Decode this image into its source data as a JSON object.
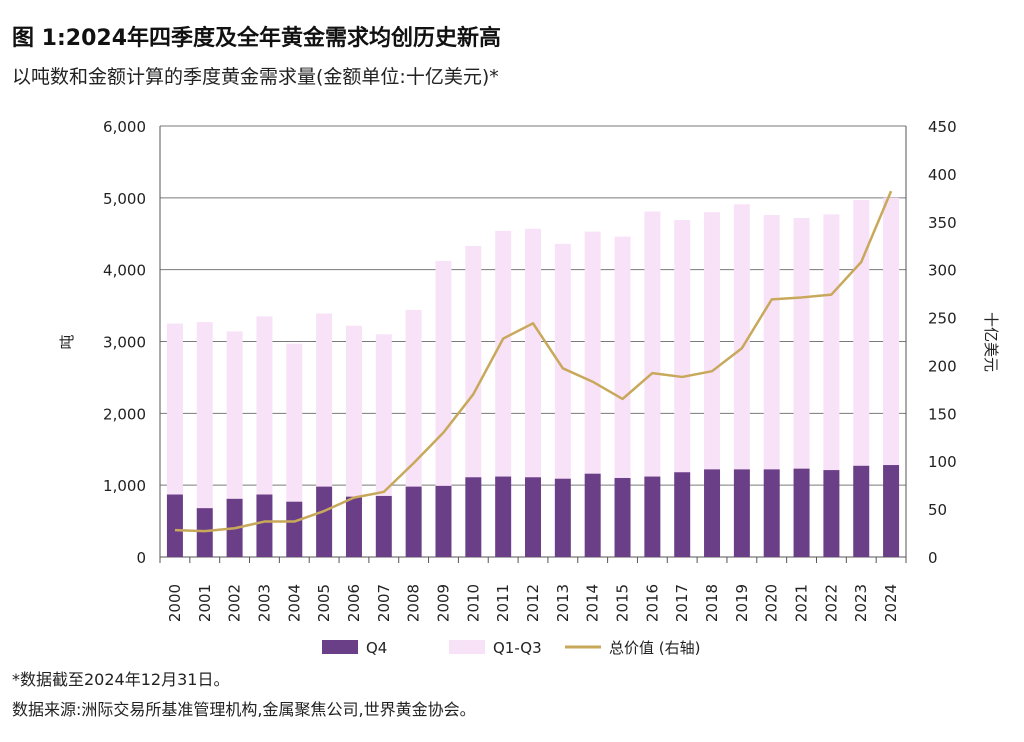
{
  "title": "图 1:2024年四季度及全年黄金需求均创历史新高",
  "subtitle": "以吨数和金额计算的季度黄金需求量(金额单位:十亿美元)*",
  "notes": {
    "asterisk": "*数据截至2024年12月31日。",
    "source": "数据来源:洲际交易所基准管理机构,金属聚焦公司,世界黄金协会。"
  },
  "chart_data": {
    "type": "bar",
    "stacked": true,
    "categories": [
      "2000",
      "2001",
      "2002",
      "2003",
      "2004",
      "2005",
      "2006",
      "2007",
      "2008",
      "2009",
      "2010",
      "2011",
      "2012",
      "2013",
      "2014",
      "2015",
      "2016",
      "2017",
      "2018",
      "2019",
      "2020",
      "2021",
      "2022",
      "2023",
      "2024"
    ],
    "series": [
      {
        "name": "Q4",
        "type": "bar",
        "axis": "left",
        "color": "#6b3f87",
        "values": [
          870,
          680,
          810,
          870,
          770,
          980,
          840,
          850,
          980,
          990,
          1110,
          1120,
          1110,
          1090,
          1160,
          1100,
          1120,
          1180,
          1220,
          1220,
          1220,
          1230,
          1210,
          1270,
          1280
        ]
      },
      {
        "name": "Q1-Q3",
        "type": "bar",
        "axis": "left",
        "color": "#f8e2f8",
        "values": [
          2380,
          2590,
          2330,
          2480,
          2200,
          2410,
          2380,
          2250,
          2460,
          3130,
          3220,
          3420,
          3460,
          3270,
          3370,
          3360,
          3690,
          3510,
          3580,
          3690,
          3540,
          3490,
          3560,
          3700,
          3720
        ]
      },
      {
        "name": "总价值 (右轴)",
        "type": "line",
        "axis": "right",
        "color": "#c8a85a",
        "values": [
          28,
          27,
          30,
          37,
          37,
          48,
          62,
          68,
          98,
          130,
          170,
          228,
          244,
          197,
          183,
          165,
          192,
          188,
          194,
          218,
          269,
          271,
          274,
          308,
          382
        ]
      }
    ],
    "ylabel": "吨",
    "y2label": "十亿美元",
    "ylim": [
      0,
      6000
    ],
    "y2lim": [
      0,
      450
    ],
    "yticks": [
      "0",
      "1,000",
      "2,000",
      "3,000",
      "4,000",
      "5,000",
      "6,000"
    ],
    "y2ticks": [
      "0",
      "50",
      "100",
      "150",
      "200",
      "250",
      "300",
      "350",
      "400",
      "450"
    ],
    "grid": true,
    "legend_position": "bottom"
  }
}
